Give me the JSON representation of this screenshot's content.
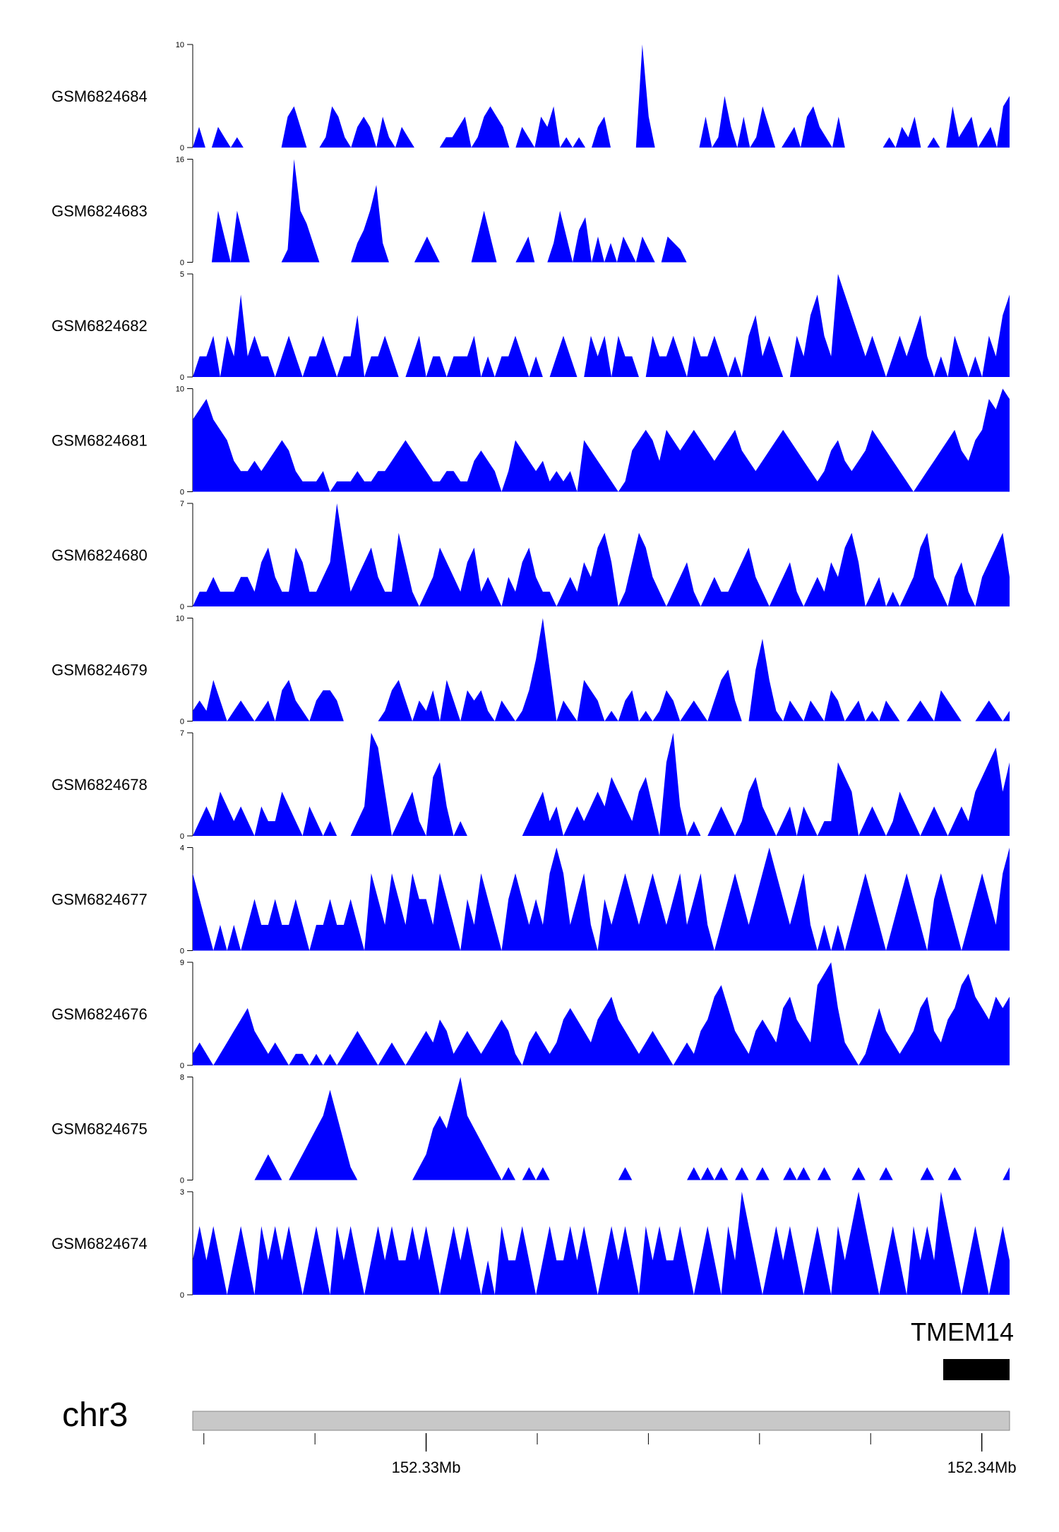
{
  "chart_data": {
    "type": "area",
    "color": "#0000FF",
    "gene_color": "#000000",
    "axis_bar_color": "#C8C8C8",
    "tracks": [
      {
        "name": "GSM6824684",
        "ymax": 10,
        "ymin_label": "0",
        "ymax_label": "10",
        "values": [
          0,
          2,
          0,
          0,
          2,
          1,
          0,
          1,
          0,
          0,
          0,
          0,
          0,
          0,
          0,
          3,
          4,
          2,
          0,
          0,
          0,
          1,
          4,
          3,
          1,
          0,
          2,
          3,
          2,
          0,
          3,
          1,
          0,
          2,
          1,
          0,
          0,
          0,
          0,
          0,
          1,
          1,
          2,
          3,
          0,
          1,
          3,
          4,
          3,
          2,
          0,
          0,
          2,
          1,
          0,
          3,
          2,
          4,
          0,
          1,
          0,
          1,
          0,
          0,
          2,
          3,
          0,
          0,
          0,
          0,
          0,
          10,
          3,
          0,
          0,
          0,
          0,
          0,
          0,
          0,
          0,
          3,
          0,
          1,
          5,
          2,
          0,
          3,
          0,
          1,
          4,
          2,
          0,
          0,
          1,
          2,
          0,
          3,
          4,
          2,
          1,
          0,
          3,
          0,
          0,
          0,
          0,
          0,
          0,
          0,
          1,
          0,
          2,
          1,
          3,
          0,
          0,
          1,
          0,
          0,
          4,
          1,
          2,
          3,
          0,
          1,
          2,
          0,
          4,
          5
        ]
      },
      {
        "name": "GSM6824683",
        "ymax": 16,
        "ymin_label": "0",
        "ymax_label": "16",
        "values": [
          0,
          0,
          0,
          0,
          8,
          4,
          0,
          8,
          4,
          0,
          0,
          0,
          0,
          0,
          0,
          2,
          16,
          8,
          6,
          3,
          0,
          0,
          0,
          0,
          0,
          0,
          3,
          5,
          8,
          12,
          3,
          0,
          0,
          0,
          0,
          0,
          2,
          4,
          2,
          0,
          0,
          0,
          0,
          0,
          0,
          4,
          8,
          4,
          0,
          0,
          0,
          0,
          2,
          4,
          0,
          0,
          0,
          3,
          8,
          4,
          0,
          5,
          7,
          0,
          4,
          0,
          3,
          0,
          4,
          2,
          0,
          4,
          2,
          0,
          0,
          4,
          3,
          2,
          0,
          0,
          0,
          0,
          0,
          0,
          0,
          0,
          0,
          0,
          0,
          0,
          0,
          0,
          0,
          0,
          0,
          0,
          0,
          0,
          0,
          0,
          0,
          0,
          0,
          0,
          0,
          0,
          0,
          0,
          0,
          0,
          0,
          0,
          0,
          0,
          0,
          0,
          0,
          0,
          0,
          0,
          0,
          0,
          0,
          0,
          0,
          0,
          0,
          0,
          0,
          0
        ]
      },
      {
        "name": "GSM6824682",
        "ymax": 5,
        "ymin_label": "0",
        "ymax_label": "5",
        "values": [
          0,
          1,
          1,
          2,
          0,
          2,
          1,
          4,
          1,
          2,
          1,
          1,
          0,
          1,
          2,
          1,
          0,
          1,
          1,
          2,
          1,
          0,
          1,
          1,
          3,
          0,
          1,
          1,
          2,
          1,
          0,
          0,
          1,
          2,
          0,
          1,
          1,
          0,
          1,
          1,
          1,
          2,
          0,
          1,
          0,
          1,
          1,
          2,
          1,
          0,
          1,
          0,
          0,
          1,
          2,
          1,
          0,
          0,
          2,
          1,
          2,
          0,
          2,
          1,
          1,
          0,
          0,
          2,
          1,
          1,
          2,
          1,
          0,
          2,
          1,
          1,
          2,
          1,
          0,
          1,
          0,
          2,
          3,
          1,
          2,
          1,
          0,
          0,
          2,
          1,
          3,
          4,
          2,
          1,
          5,
          4,
          3,
          2,
          1,
          2,
          1,
          0,
          1,
          2,
          1,
          2,
          3,
          1,
          0,
          1,
          0,
          2,
          1,
          0,
          1,
          0,
          2,
          1,
          3,
          4
        ]
      },
      {
        "name": "GSM6824681",
        "ymax": 10,
        "ymin_label": "0",
        "ymax_label": "10",
        "values": [
          7,
          8,
          9,
          7,
          6,
          5,
          3,
          2,
          2,
          3,
          2,
          3,
          4,
          5,
          4,
          2,
          1,
          1,
          1,
          2,
          0,
          1,
          1,
          1,
          2,
          1,
          1,
          2,
          2,
          3,
          4,
          5,
          4,
          3,
          2,
          1,
          1,
          2,
          2,
          1,
          1,
          3,
          4,
          3,
          2,
          0,
          2,
          5,
          4,
          3,
          2,
          3,
          1,
          2,
          1,
          2,
          0,
          5,
          4,
          3,
          2,
          1,
          0,
          1,
          4,
          5,
          6,
          5,
          3,
          6,
          5,
          4,
          5,
          6,
          5,
          4,
          3,
          4,
          5,
          6,
          4,
          3,
          2,
          3,
          4,
          5,
          6,
          5,
          4,
          3,
          2,
          1,
          2,
          4,
          5,
          3,
          2,
          3,
          4,
          6,
          5,
          4,
          3,
          2,
          1,
          0,
          1,
          2,
          3,
          4,
          5,
          6,
          4,
          3,
          5,
          6,
          9,
          8,
          10,
          9
        ]
      },
      {
        "name": "GSM6824680",
        "ymax": 7,
        "ymin_label": "0",
        "ymax_label": "7",
        "values": [
          0,
          1,
          1,
          2,
          1,
          1,
          1,
          2,
          2,
          1,
          3,
          4,
          2,
          1,
          1,
          4,
          3,
          1,
          1,
          2,
          3,
          7,
          4,
          1,
          2,
          3,
          4,
          2,
          1,
          1,
          5,
          3,
          1,
          0,
          1,
          2,
          4,
          3,
          2,
          1,
          3,
          4,
          1,
          2,
          1,
          0,
          2,
          1,
          3,
          4,
          2,
          1,
          1,
          0,
          1,
          2,
          1,
          3,
          2,
          4,
          5,
          3,
          0,
          1,
          3,
          5,
          4,
          2,
          1,
          0,
          1,
          2,
          3,
          1,
          0,
          1,
          2,
          1,
          1,
          2,
          3,
          4,
          2,
          1,
          0,
          1,
          2,
          3,
          1,
          0,
          1,
          2,
          1,
          3,
          2,
          4,
          5,
          3,
          0,
          1,
          2,
          0,
          1,
          0,
          1,
          2,
          4,
          5,
          2,
          1,
          0,
          2,
          3,
          1,
          0,
          2,
          3,
          4,
          5,
          2
        ]
      },
      {
        "name": "GSM6824679",
        "ymax": 10,
        "ymin_label": "0",
        "ymax_label": "10",
        "values": [
          1,
          2,
          1,
          4,
          2,
          0,
          1,
          2,
          1,
          0,
          1,
          2,
          0,
          3,
          4,
          2,
          1,
          0,
          2,
          3,
          3,
          2,
          0,
          0,
          0,
          0,
          0,
          0,
          1,
          3,
          4,
          2,
          0,
          2,
          1,
          3,
          0,
          4,
          2,
          0,
          3,
          2,
          3,
          1,
          0,
          2,
          1,
          0,
          1,
          3,
          6,
          10,
          5,
          0,
          2,
          1,
          0,
          4,
          3,
          2,
          0,
          1,
          0,
          2,
          3,
          0,
          1,
          0,
          1,
          3,
          2,
          0,
          1,
          2,
          1,
          0,
          2,
          4,
          5,
          2,
          0,
          0,
          5,
          8,
          4,
          1,
          0,
          2,
          1,
          0,
          2,
          1,
          0,
          3,
          2,
          0,
          1,
          2,
          0,
          1,
          0,
          2,
          1,
          0,
          0,
          1,
          2,
          1,
          0,
          3,
          2,
          1,
          0,
          0,
          0,
          1,
          2,
          1,
          0,
          1
        ]
      },
      {
        "name": "GSM6824678",
        "ymax": 7,
        "ymin_label": "0",
        "ymax_label": "7",
        "values": [
          0,
          1,
          2,
          1,
          3,
          2,
          1,
          2,
          1,
          0,
          2,
          1,
          1,
          3,
          2,
          1,
          0,
          2,
          1,
          0,
          1,
          0,
          0,
          0,
          1,
          2,
          7,
          6,
          3,
          0,
          1,
          2,
          3,
          1,
          0,
          4,
          5,
          2,
          0,
          1,
          0,
          0,
          0,
          0,
          0,
          0,
          0,
          0,
          0,
          1,
          2,
          3,
          1,
          2,
          0,
          1,
          2,
          1,
          2,
          3,
          2,
          4,
          3,
          2,
          1,
          3,
          4,
          2,
          0,
          5,
          7,
          2,
          0,
          1,
          0,
          0,
          1,
          2,
          1,
          0,
          1,
          3,
          4,
          2,
          1,
          0,
          1,
          2,
          0,
          2,
          1,
          0,
          1,
          1,
          5,
          4,
          3,
          0,
          1,
          2,
          1,
          0,
          1,
          3,
          2,
          1,
          0,
          1,
          2,
          1,
          0,
          1,
          2,
          1,
          3,
          4,
          5,
          6,
          3,
          5
        ]
      },
      {
        "name": "GSM6824677",
        "ymax": 4,
        "ymin_label": "0",
        "ymax_label": "4",
        "values": [
          3,
          2,
          1,
          0,
          1,
          0,
          1,
          0,
          1,
          2,
          1,
          1,
          2,
          1,
          1,
          2,
          1,
          0,
          1,
          1,
          2,
          1,
          1,
          2,
          1,
          0,
          3,
          2,
          1,
          3,
          2,
          1,
          3,
          2,
          2,
          1,
          3,
          2,
          1,
          0,
          2,
          1,
          3,
          2,
          1,
          0,
          2,
          3,
          2,
          1,
          2,
          1,
          3,
          4,
          3,
          1,
          2,
          3,
          1,
          0,
          2,
          1,
          2,
          3,
          2,
          1,
          2,
          3,
          2,
          1,
          2,
          3,
          1,
          2,
          3,
          1,
          0,
          1,
          2,
          3,
          2,
          1,
          2,
          3,
          4,
          3,
          2,
          1,
          2,
          3,
          1,
          0,
          1,
          0,
          1,
          0,
          1,
          2,
          3,
          2,
          1,
          0,
          1,
          2,
          3,
          2,
          1,
          0,
          2,
          3,
          2,
          1,
          0,
          1,
          2,
          3,
          2,
          1,
          3,
          4
        ]
      },
      {
        "name": "GSM6824676",
        "ymax": 9,
        "ymin_label": "0",
        "ymax_label": "9",
        "values": [
          1,
          2,
          1,
          0,
          1,
          2,
          3,
          4,
          5,
          3,
          2,
          1,
          2,
          1,
          0,
          1,
          1,
          0,
          1,
          0,
          1,
          0,
          1,
          2,
          3,
          2,
          1,
          0,
          1,
          2,
          1,
          0,
          1,
          2,
          3,
          2,
          4,
          3,
          1,
          2,
          3,
          2,
          1,
          2,
          3,
          4,
          3,
          1,
          0,
          2,
          3,
          2,
          1,
          2,
          4,
          5,
          4,
          3,
          2,
          4,
          5,
          6,
          4,
          3,
          2,
          1,
          2,
          3,
          2,
          1,
          0,
          1,
          2,
          1,
          3,
          4,
          6,
          7,
          5,
          3,
          2,
          1,
          3,
          4,
          3,
          2,
          5,
          6,
          4,
          3,
          2,
          7,
          8,
          9,
          5,
          2,
          1,
          0,
          1,
          3,
          5,
          3,
          2,
          1,
          2,
          3,
          5,
          6,
          3,
          2,
          4,
          5,
          7,
          8,
          6,
          5,
          4,
          6,
          5,
          6
        ]
      },
      {
        "name": "GSM6824675",
        "ymax": 8,
        "ymin_label": "0",
        "ymax_label": "8",
        "values": [
          0,
          0,
          0,
          0,
          0,
          0,
          0,
          0,
          0,
          0,
          1,
          2,
          1,
          0,
          0,
          1,
          2,
          3,
          4,
          5,
          7,
          5,
          3,
          1,
          0,
          0,
          0,
          0,
          0,
          0,
          0,
          0,
          0,
          1,
          2,
          4,
          5,
          4,
          6,
          8,
          5,
          4,
          3,
          2,
          1,
          0,
          1,
          0,
          0,
          1,
          0,
          1,
          0,
          0,
          0,
          0,
          0,
          0,
          0,
          0,
          0,
          0,
          0,
          1,
          0,
          0,
          0,
          0,
          0,
          0,
          0,
          0,
          0,
          1,
          0,
          1,
          0,
          1,
          0,
          0,
          1,
          0,
          0,
          1,
          0,
          0,
          0,
          1,
          0,
          1,
          0,
          0,
          1,
          0,
          0,
          0,
          0,
          1,
          0,
          0,
          0,
          1,
          0,
          0,
          0,
          0,
          0,
          1,
          0,
          0,
          0,
          1,
          0,
          0,
          0,
          0,
          0,
          0,
          0,
          1
        ]
      },
      {
        "name": "GSM6824674",
        "ymax": 3,
        "ymin_label": "0",
        "ymax_label": "3",
        "values": [
          1,
          2,
          1,
          2,
          1,
          0,
          1,
          2,
          1,
          0,
          2,
          1,
          2,
          1,
          2,
          1,
          0,
          1,
          2,
          1,
          0,
          2,
          1,
          2,
          1,
          0,
          1,
          2,
          1,
          2,
          1,
          1,
          2,
          1,
          2,
          1,
          0,
          1,
          2,
          1,
          2,
          1,
          0,
          1,
          0,
          2,
          1,
          1,
          2,
          1,
          0,
          1,
          2,
          1,
          1,
          2,
          1,
          2,
          1,
          0,
          1,
          2,
          1,
          2,
          1,
          0,
          2,
          1,
          2,
          1,
          1,
          2,
          1,
          0,
          1,
          2,
          1,
          0,
          2,
          1,
          3,
          2,
          1,
          0,
          1,
          2,
          1,
          2,
          1,
          0,
          1,
          2,
          1,
          0,
          2,
          1,
          2,
          3,
          2,
          1,
          0,
          1,
          2,
          1,
          0,
          2,
          1,
          2,
          1,
          3,
          2,
          1,
          0,
          1,
          2,
          1,
          0,
          1,
          2,
          1
        ]
      }
    ],
    "gene": {
      "label": "TMEM14"
    },
    "chromosome": {
      "label": "chr3"
    },
    "axis": {
      "range_mb": [
        152.3258,
        152.3405
      ],
      "major_ticks": [
        {
          "value": 152.33,
          "label": "152.33Mb"
        },
        {
          "value": 152.34,
          "label": "152.34Mb"
        }
      ],
      "minor_ticks": [
        152.326,
        152.328,
        152.332,
        152.334,
        152.336,
        152.338
      ]
    }
  }
}
